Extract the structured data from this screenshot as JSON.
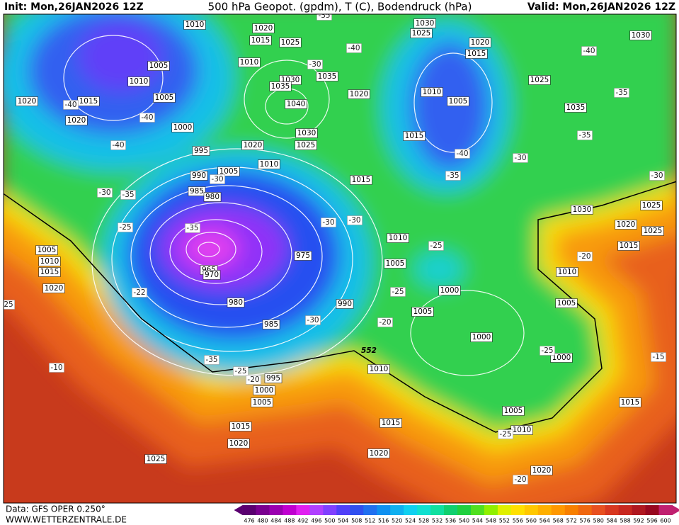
{
  "header": {
    "init": "Init: Mon,26JAN2026 12Z",
    "title": "500 hPa Geopot. (gpdm), T (C), Bodendruck (hPa)",
    "valid": "Valid: Mon,26JAN2026 12Z"
  },
  "footer": {
    "source": "Data: GFS OPER 0.250°",
    "url": "WWW.WETTERZENTRALE.DE"
  },
  "map": {
    "pressure_labels": [
      "1010",
      "1020",
      "1015",
      "1025",
      "1030",
      "1025",
      "1030",
      "1020",
      "1015",
      "1005",
      "1010",
      "1010",
      "1030",
      "1035",
      "1035",
      "1020",
      "1015",
      "1005",
      "1020",
      "1020",
      "1010",
      "1005",
      "1025",
      "1035",
      "1040",
      "1000",
      "1030",
      "1025",
      "1020",
      "1015",
      "995",
      "1010",
      "1005",
      "990",
      "1015",
      "985",
      "980",
      "1030",
      "1025",
      "1020",
      "1025",
      "1015",
      "1010",
      "1005",
      "1010",
      "1015",
      "975",
      "965",
      "970",
      "1005",
      "1010",
      "1020",
      "1000",
      "980",
      "990",
      "1005",
      "1005",
      "985",
      "1000",
      "1000",
      "1010",
      "995",
      "1000",
      "1005",
      "1015",
      "1005",
      "1015",
      "1015",
      "1010",
      "1020",
      "1020",
      "1025",
      "1020"
    ],
    "temperature_labels": [
      "-35",
      "-40",
      "-40",
      "-30",
      "-35",
      "-40",
      "-40",
      "-35",
      "-40",
      "-40",
      "-30",
      "-35",
      "-30",
      "-30",
      "-30",
      "-35",
      "-25",
      "-35",
      "-30",
      "-30",
      "-25",
      "-20",
      "-25",
      "-22",
      "-30",
      "-20",
      "-25",
      "-15",
      "-35",
      "-10",
      "-25",
      "-20",
      "-25",
      "-20",
      "25"
    ],
    "height_label": "552"
  },
  "colorbar": {
    "ticks": [
      476,
      480,
      484,
      488,
      492,
      496,
      500,
      504,
      508,
      512,
      516,
      520,
      524,
      528,
      532,
      536,
      540,
      544,
      548,
      552,
      556,
      560,
      564,
      568,
      572,
      576,
      580,
      584,
      588,
      592,
      596,
      600
    ],
    "colors": [
      "#5a0070",
      "#7a0090",
      "#9a00b0",
      "#c000d0",
      "#e020f0",
      "#b040ff",
      "#8040ff",
      "#5040f8",
      "#3050f0",
      "#2070f0",
      "#1090f0",
      "#10b0f0",
      "#10d0f0",
      "#10e0d0",
      "#10e0a0",
      "#10d070",
      "#20d040",
      "#50e020",
      "#90f000",
      "#e0f000",
      "#ffe000",
      "#ffc800",
      "#ffb000",
      "#ff9800",
      "#f88000",
      "#f06810",
      "#e85020",
      "#d83820",
      "#c82820",
      "#b01820",
      "#980820",
      "#c02070"
    ]
  }
}
